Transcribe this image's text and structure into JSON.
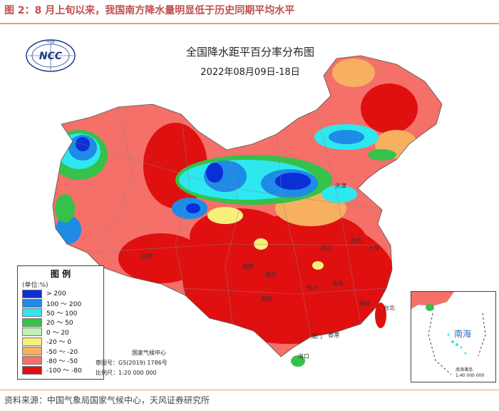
{
  "figure": {
    "title": "图 2：8 月上旬以来，我国南方降水量明显低于历史同期平均水平",
    "source": "资料来源：中国气象局国家气候中心，天风证券研究所"
  },
  "map": {
    "title": "全国降水距平百分率分布图",
    "date": "2022年08月09日-18日",
    "logo_text": "NCC",
    "logo_caption": "中 国",
    "credits": {
      "org": "国家气候中心",
      "approval": "审图号：GS(2019) 1786号",
      "scale": "比例尺：1:20 000 000"
    },
    "inset": {
      "title": "南海",
      "caption": "南海诸岛",
      "scale": "1:40 000 000"
    },
    "cities": [
      {
        "name": "天津"
      },
      {
        "name": "上海"
      },
      {
        "name": "成都"
      },
      {
        "name": "重庆"
      },
      {
        "name": "贵阳"
      },
      {
        "name": "长沙"
      },
      {
        "name": "南昌"
      },
      {
        "name": "福州"
      },
      {
        "name": "台北"
      },
      {
        "name": "香港"
      },
      {
        "name": "澳门"
      },
      {
        "name": "海口"
      },
      {
        "name": "拉萨"
      },
      {
        "name": "武汉"
      },
      {
        "name": "南京"
      }
    ]
  },
  "legend": {
    "title": "图 例",
    "unit": "(单位:%)",
    "items": [
      {
        "label": "> 200",
        "color": "#0a2fd6"
      },
      {
        "label": "100 ～ 200",
        "color": "#1e8be6"
      },
      {
        "label": "50 ～ 100",
        "color": "#2ee8f0"
      },
      {
        "label": "20 ～ 50",
        "color": "#35c24a"
      },
      {
        "label": "0 ～ 20",
        "color": "#bff0b5"
      },
      {
        "label": "-20 ～ 0",
        "color": "#f6f07a"
      },
      {
        "label": "-50 ～ -20",
        "color": "#f6b060"
      },
      {
        "label": "-80 ～ -50",
        "color": "#f47068"
      },
      {
        "label": "-100 ～ -80",
        "color": "#e01010"
      }
    ]
  }
}
